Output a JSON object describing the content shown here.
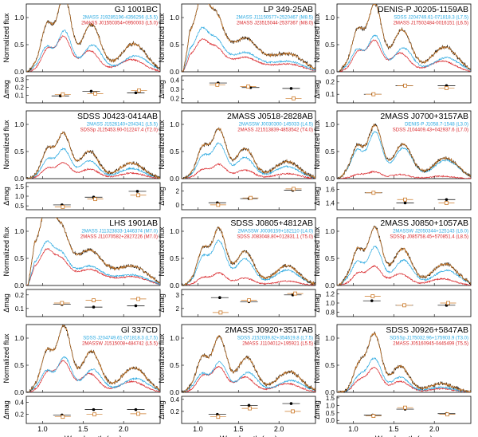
{
  "colors": {
    "composite": "#000000",
    "template": "#cc7a29",
    "primary": "#29a8e0",
    "secondary": "#d9262a",
    "frame": "#000000"
  },
  "labels": {
    "ylabel_top": "Normalized flux",
    "ylabel_bottom": "Δmag",
    "xlabel": "Wavelength (μm)"
  },
  "xaxis": {
    "range": [
      0.8,
      2.45
    ],
    "ticks": [
      1.0,
      1.5,
      2.0
    ],
    "ticklabels": [
      "1.0",
      "1.5",
      "2.0"
    ]
  },
  "fluxaxis": {
    "range": [
      0.0,
      1.25
    ],
    "ticks": [
      0.0,
      0.5,
      1.0
    ],
    "ticklabels": [
      "0.0",
      "0.5",
      "1.0"
    ]
  },
  "chart_data": [
    {
      "type": "line",
      "title": "GJ 1001BC",
      "primary": "2MASS J19285196-4356256 (L5.5)",
      "secondary": "2MASS J01550354+0950003 (L5.0)",
      "dmag_ticks": [
        "0.1",
        "0.2",
        "0.3"
      ],
      "dmag_range": [
        0.0,
        0.35
      ],
      "dmag_obs": [
        [
          1.22,
          0.09
        ],
        [
          1.6,
          0.15
        ],
        [
          2.15,
          0.13
        ]
      ],
      "dmag_tpl": [
        [
          1.25,
          0.11
        ],
        [
          1.65,
          0.12
        ],
        [
          2.19,
          0.16
        ]
      ]
    },
    {
      "type": "line",
      "title": "LP 349-25AB",
      "primary": "2MASS J11150577+2520467 (M8.5)",
      "secondary": "2MASS J23515044-2537367 (M8.0)",
      "dmag_ticks": [
        "0.2",
        "0.3",
        "0.4"
      ],
      "dmag_range": [
        0.15,
        0.45
      ],
      "dmag_obs": [
        [
          1.25,
          0.37
        ],
        [
          1.65,
          0.32
        ],
        [
          2.15,
          0.31
        ]
      ],
      "dmag_tpl": [
        [
          1.24,
          0.35
        ],
        [
          1.62,
          0.33
        ],
        [
          2.18,
          0.2
        ]
      ]
    },
    {
      "type": "line",
      "title": "DENIS-P J0205-1159AB",
      "primary": "SDSS J204749.61-071818.3 (L7.5)",
      "secondary": "2MASS J17502484-0016151 (L6.5)",
      "dmag_ticks": [
        "0.1",
        "0.2"
      ],
      "dmag_range": [
        0.03,
        0.25
      ],
      "dmag_obs": [
        [
          1.24,
          0.1
        ],
        [
          1.63,
          0.17
        ],
        [
          2.15,
          0.17
        ]
      ],
      "dmag_tpl": [
        [
          1.25,
          0.1
        ],
        [
          1.64,
          0.17
        ],
        [
          2.15,
          0.15
        ]
      ]
    },
    {
      "type": "line",
      "title": "SDSS J0423-0414AB",
      "primary": "2MASS J1526140+204341 (L5.5)",
      "secondary": "SDSSp J125453.90-012247.4 (T2.0)",
      "dmag_ticks": [
        "0.5",
        "1.0",
        "1.5"
      ],
      "dmag_range": [
        0.3,
        1.7
      ],
      "dmag_obs": [
        [
          1.24,
          0.55
        ],
        [
          1.63,
          0.95
        ],
        [
          2.17,
          1.25
        ]
      ],
      "dmag_tpl": [
        [
          1.25,
          0.45
        ],
        [
          1.65,
          0.85
        ],
        [
          2.18,
          1.05
        ]
      ]
    },
    {
      "type": "line",
      "title": "2MASS J0518-2828AB",
      "primary": "2MASSW J0030300-145033 (L4.5)",
      "secondary": "2MASS J21513839-4853542 (T4.0)",
      "dmag_ticks": [
        "0",
        "2"
      ],
      "dmag_range": [
        -0.7,
        3.2
      ],
      "dmag_obs": [
        [
          1.24,
          0.3
        ],
        [
          1.63,
          0.9
        ],
        [
          2.17,
          2.1
        ]
      ],
      "dmag_tpl": [
        [
          1.25,
          0.0
        ],
        [
          1.65,
          1.0
        ],
        [
          2.18,
          2.3
        ]
      ]
    },
    {
      "type": "line",
      "title": "2MASS J0700+3157AB",
      "primary": "DENIS-P J1058.7-1548 (L3.0)",
      "secondary": "SDSS J104409.43+042937.6 (L7.0)",
      "dmag_ticks": [
        "1.4",
        "1.6"
      ],
      "dmag_range": [
        1.3,
        1.7
      ],
      "dmag_obs": [
        [
          1.25,
          1.55
        ],
        [
          1.64,
          1.4
        ],
        [
          2.15,
          1.45
        ]
      ],
      "dmag_tpl": [
        [
          1.25,
          1.55
        ],
        [
          1.64,
          1.45
        ],
        [
          2.15,
          1.4
        ]
      ]
    },
    {
      "type": "line",
      "title": "LHS 1901AB",
      "primary": "2MASS J11323833-1446374 (M7.0)",
      "secondary": "2MASS J11070582+2827226 (M7.0)",
      "dmag_ticks": [
        "0.1",
        "0.2"
      ],
      "dmag_range": [
        0.04,
        0.24
      ],
      "dmag_obs": [
        [
          1.24,
          0.13
        ],
        [
          1.63,
          0.11
        ],
        [
          2.15,
          0.12
        ]
      ],
      "dmag_tpl": [
        [
          1.24,
          0.14
        ],
        [
          1.63,
          0.16
        ],
        [
          2.18,
          0.17
        ]
      ]
    },
    {
      "type": "line",
      "title": "SDSS J0805+4812AB",
      "primary": "2MASSW J0036159+182110 (L4.0)",
      "secondary": "SDSS J083048.80+012831.1 (T5.0)",
      "dmag_ticks": [
        "2",
        "3"
      ],
      "dmag_range": [
        1.4,
        3.4
      ],
      "dmag_obs": [
        [
          1.27,
          2.8
        ],
        [
          1.63,
          2.5
        ],
        [
          2.17,
          3.0
        ]
      ],
      "dmag_tpl": [
        [
          1.28,
          1.7
        ],
        [
          1.63,
          2.6
        ],
        [
          2.2,
          3.1
        ]
      ]
    },
    {
      "type": "line",
      "title": "2MASS J0850+1057AB",
      "primary": "2MASSW J2050344+125143 (L6.0)",
      "secondary": "SDSSp J085758.45+570851.4 (L8.5)",
      "dmag_ticks": [
        "0.8",
        "1.0",
        "1.2"
      ],
      "dmag_range": [
        0.7,
        1.3
      ],
      "dmag_obs": [
        [
          1.23,
          1.05
        ],
        [
          1.63,
          0.95
        ],
        [
          2.15,
          0.95
        ]
      ],
      "dmag_tpl": [
        [
          1.24,
          1.15
        ],
        [
          1.63,
          0.95
        ],
        [
          2.17,
          1.0
        ]
      ]
    },
    {
      "type": "line",
      "title": "Gl 337CD",
      "primary": "SDSS J204749.61-071818.3 (L7.5)",
      "secondary": "2MASSW J1515008+484742 (L5.5)",
      "dmag_ticks": [
        "0.2",
        "0.4"
      ],
      "dmag_range": [
        0.05,
        0.5
      ],
      "dmag_obs": [
        [
          1.24,
          0.19
        ],
        [
          1.63,
          0.28
        ],
        [
          2.15,
          0.28
        ]
      ],
      "dmag_tpl": [
        [
          1.25,
          0.16
        ],
        [
          1.64,
          0.2
        ],
        [
          2.18,
          0.21
        ]
      ]
    },
    {
      "type": "line",
      "title": "2MASS J0920+3517AB",
      "primary": "SDSS J152039.82+354619.8 (L7.5)",
      "secondary": "2MASS J1104012+195921 (L5.5)",
      "dmag_ticks": [
        "0.2",
        "0.4"
      ],
      "dmag_range": [
        0.0,
        0.45
      ],
      "dmag_obs": [
        [
          1.24,
          0.15
        ],
        [
          1.63,
          0.3
        ],
        [
          2.15,
          0.33
        ]
      ],
      "dmag_tpl": [
        [
          1.25,
          0.11
        ],
        [
          1.64,
          0.25
        ],
        [
          2.17,
          0.2
        ]
      ]
    },
    {
      "type": "line",
      "title": "SDSS J0926+5847AB",
      "primary": "SDSSp J175032.96+175903.9 (T3.0)",
      "secondary": "2MASS J05160945-0445499 (T5.5)",
      "dmag_ticks": [
        "0.0",
        "0.5",
        "1.0",
        "1.5"
      ],
      "dmag_range": [
        -0.2,
        1.6
      ],
      "dmag_obs": [
        [
          1.24,
          0.35
        ],
        [
          1.64,
          0.75
        ],
        [
          2.15,
          0.45
        ]
      ],
      "dmag_tpl": [
        [
          1.25,
          0.3
        ],
        [
          1.64,
          0.85
        ],
        [
          2.16,
          0.4
        ]
      ]
    }
  ]
}
